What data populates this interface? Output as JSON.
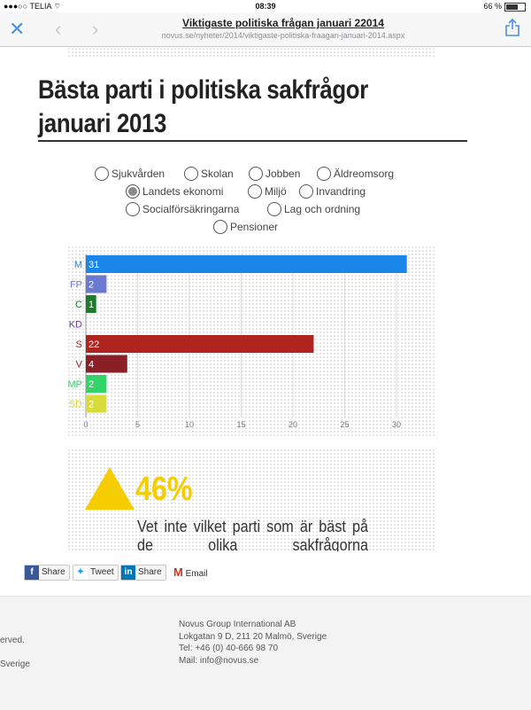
{
  "status": {
    "carrier": "TELIA",
    "time": "08:39",
    "battery": "66 %"
  },
  "browser": {
    "title": "Viktigaste politiska frågan januari 22014",
    "url": "novus.se/nyheter/2014/viktigaste-politiska-fraagan-januari-2014.aspx"
  },
  "heading": {
    "line1": "Bästa parti i politiska sakfrågor",
    "line2": "januari 2013"
  },
  "topics": {
    "sjukvarden": "Sjukvården",
    "skolan": "Skolan",
    "jobben": "Jobben",
    "aldreomsorg": "Äldreomsorg",
    "landets_ekonomi": "Landets ekonomi",
    "miljo": "Miljö",
    "invandring": "Invandring",
    "socialforsakringarna": "Socialförsäkringarna",
    "lag_och_ordning": "Lag och ordning",
    "pensioner": "Pensioner",
    "selected": "Landets ekonomi"
  },
  "chart_data": {
    "type": "bar",
    "orientation": "horizontal",
    "categories": [
      "M",
      "FP",
      "C",
      "KD",
      "S",
      "V",
      "MP",
      "SD"
    ],
    "values": [
      31,
      2,
      1,
      null,
      22,
      4,
      2,
      2
    ],
    "value_labels": [
      "31",
      "2",
      "1",
      "",
      "22",
      "4",
      "2",
      "2"
    ],
    "colors": [
      "#1a86ea",
      "#6a78d0",
      "#1e7a2e",
      "#6a3c9a",
      "#b0241f",
      "#8a1f27",
      "#33d36a",
      "#d8dc3a"
    ],
    "label_colors": [
      "#1a86ea",
      "#6a78d0",
      "#1e7a2e",
      "#6a3c9a",
      "#b0241f",
      "#8a1f27",
      "#33d36a",
      "#d8dc3a"
    ],
    "xticks": [
      0,
      5,
      10,
      15,
      20,
      25,
      30
    ],
    "xtick_labels": [
      "0",
      "5",
      "10",
      "15",
      "20",
      "25",
      "30"
    ],
    "xlim": [
      0,
      30
    ],
    "grid": true
  },
  "info": {
    "percent": "46%",
    "text": "Vet inte vilket parti som är bäst på de olika sakfrågorna"
  },
  "share": {
    "facebook": "Share",
    "twitter": "Tweet",
    "linkedin": "Share",
    "email": "Email"
  },
  "footer": {
    "left1": "erved.",
    "left2": "Sverige",
    "company": "Novus Group International AB",
    "address": "Lokgatan 9 D, 211 20 Malmö, Sverige",
    "phone": "Tel: +46 (0) 40-666 98 70",
    "mail": "Mail: info@novus.se"
  }
}
